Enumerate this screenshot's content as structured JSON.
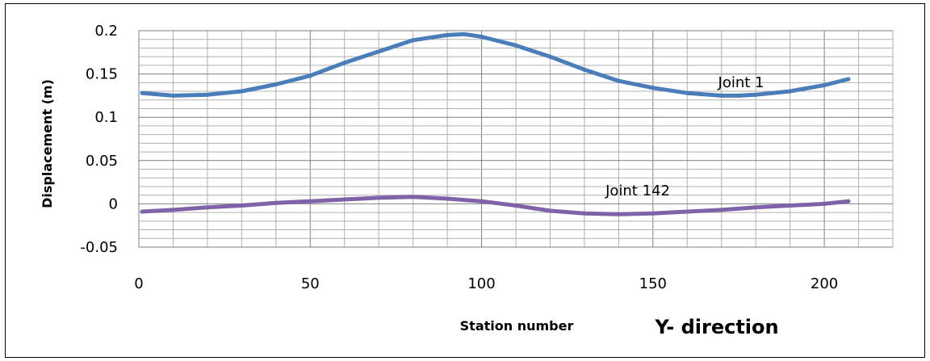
{
  "chart_data": {
    "type": "line",
    "xlabel": "Station number",
    "ylabel": "Displacement (m)",
    "caption": "Y- direction",
    "xlim": [
      0,
      220
    ],
    "ylim": [
      -0.05,
      0.2
    ],
    "x_ticks": [
      "0",
      "50",
      "100",
      "150",
      "200"
    ],
    "y_ticks": [
      "-0.05",
      "0",
      "0.05",
      "0.1",
      "0.15",
      "0.2"
    ],
    "grid": true,
    "series": [
      {
        "name": "Joint 1",
        "color": "#4a7ebb",
        "x": [
          1,
          10,
          20,
          30,
          40,
          50,
          60,
          70,
          80,
          90,
          95,
          100,
          110,
          120,
          130,
          140,
          150,
          160,
          170,
          175,
          180,
          190,
          200,
          207
        ],
        "y": [
          0.128,
          0.125,
          0.126,
          0.13,
          0.138,
          0.148,
          0.163,
          0.176,
          0.189,
          0.195,
          0.196,
          0.193,
          0.183,
          0.17,
          0.155,
          0.142,
          0.134,
          0.128,
          0.125,
          0.125,
          0.126,
          0.13,
          0.137,
          0.144
        ]
      },
      {
        "name": "Joint 142",
        "color": "#7f62a8",
        "x": [
          1,
          10,
          20,
          30,
          40,
          50,
          60,
          70,
          80,
          90,
          100,
          110,
          120,
          130,
          140,
          150,
          160,
          170,
          180,
          190,
          200,
          207
        ],
        "y": [
          -0.009,
          -0.007,
          -0.004,
          -0.002,
          0.001,
          0.003,
          0.005,
          0.007,
          0.008,
          0.006,
          0.003,
          -0.002,
          -0.008,
          -0.011,
          -0.012,
          -0.011,
          -0.009,
          -0.007,
          -0.004,
          -0.002,
          0.0,
          0.003
        ]
      }
    ]
  }
}
